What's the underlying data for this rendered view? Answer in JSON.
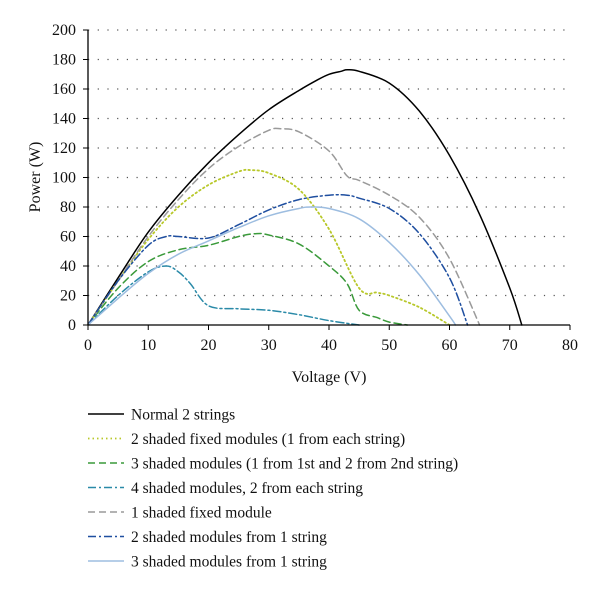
{
  "chart_data": {
    "type": "line",
    "xlabel": "Voltage (V)",
    "ylabel": "Power (W)",
    "xlim": [
      0,
      80
    ],
    "ylim": [
      0,
      200
    ],
    "xticks": [
      0,
      10,
      20,
      30,
      40,
      50,
      60,
      70,
      80
    ],
    "yticks": [
      0,
      20,
      40,
      60,
      80,
      100,
      120,
      140,
      160,
      180,
      200
    ],
    "grid": "horizontal-dotted",
    "legend_position": "bottom",
    "series": [
      {
        "name": "Normal 2 strings",
        "color": "#000000",
        "dash": "solid",
        "x": [
          0,
          5,
          10,
          15,
          20,
          25,
          30,
          35,
          38,
          40,
          42,
          43,
          45,
          50,
          55,
          60,
          65,
          70,
          72
        ],
        "y": [
          0,
          32,
          63,
          88,
          110,
          129,
          146,
          159,
          166,
          170,
          172,
          173,
          172,
          164,
          145,
          115,
          75,
          25,
          0
        ]
      },
      {
        "name": "2 shaded fixed modules (1 from each string)",
        "color": "#b8c82a",
        "dash": "dotted",
        "x": [
          0,
          5,
          10,
          15,
          20,
          25,
          27,
          30,
          35,
          40,
          45,
          48,
          50,
          55,
          60
        ],
        "y": [
          0,
          30,
          58,
          80,
          95,
          104,
          105,
          103,
          92,
          65,
          25,
          22,
          20,
          12,
          0
        ]
      },
      {
        "name": "3 shaded modules (1 from 1st and 2 from 2nd string)",
        "color": "#3a9a3a",
        "dash": "dashed",
        "x": [
          0,
          5,
          10,
          15,
          20,
          25,
          28,
          30,
          35,
          40,
          43,
          45,
          48,
          50,
          53
        ],
        "y": [
          0,
          25,
          43,
          51,
          54,
          60,
          62,
          61,
          55,
          40,
          28,
          10,
          5,
          2,
          0
        ]
      },
      {
        "name": "4 shaded modules, 2 from each string",
        "color": "#2a8aa8",
        "dash": "dashdot",
        "x": [
          0,
          5,
          10,
          13,
          15,
          17,
          20,
          25,
          30,
          35,
          40,
          45
        ],
        "y": [
          0,
          20,
          36,
          40,
          36,
          28,
          13,
          11,
          10,
          7,
          3,
          0
        ]
      },
      {
        "name": "1 shaded fixed module",
        "color": "#9a9a9a",
        "dash": "dashed",
        "x": [
          0,
          5,
          10,
          15,
          20,
          25,
          30,
          32,
          35,
          40,
          43,
          45,
          50,
          55,
          60,
          65
        ],
        "y": [
          0,
          30,
          60,
          85,
          106,
          121,
          132,
          133,
          131,
          118,
          101,
          98,
          88,
          73,
          45,
          0
        ]
      },
      {
        "name": "2 shaded modules from 1 string",
        "color": "#1f4fa0",
        "dash": "dashdot",
        "x": [
          0,
          5,
          10,
          13,
          15,
          20,
          25,
          30,
          35,
          40,
          43,
          45,
          50,
          55,
          60,
          63
        ],
        "y": [
          0,
          30,
          54,
          60,
          60,
          59,
          68,
          78,
          85,
          88,
          88,
          86,
          79,
          62,
          32,
          0
        ]
      },
      {
        "name": "3 shaded modules from 1 string",
        "color": "#9dbde0",
        "dash": "solid",
        "x": [
          0,
          5,
          10,
          15,
          20,
          25,
          30,
          35,
          37,
          40,
          45,
          50,
          55,
          60,
          61
        ],
        "y": [
          0,
          18,
          35,
          48,
          57,
          66,
          74,
          79,
          80,
          79,
          72,
          56,
          34,
          6,
          0
        ]
      }
    ]
  }
}
